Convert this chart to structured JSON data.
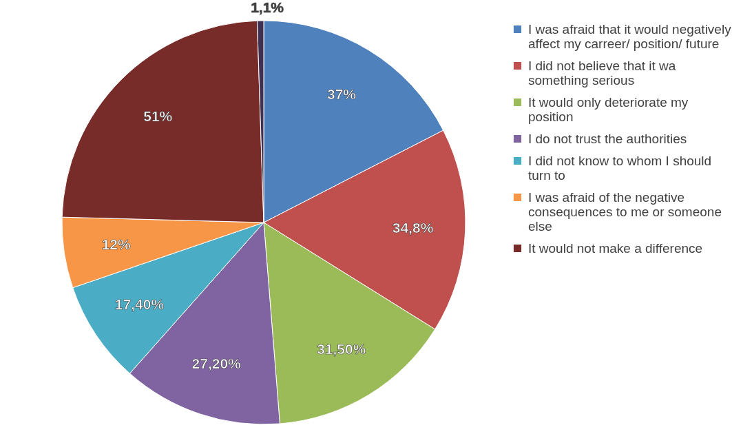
{
  "chart_data": {
    "type": "pie",
    "categories": [
      "I was afraid that it would negatively affect my carreer/ position/ future",
      "I did not believe that it wa something serious",
      "It would only deteriorate my position",
      "I do not trust the authorities",
      "I did not know to whom I should turn to",
      "I was afraid  of the negative consequences to me or someone else",
      "It would not make a difference",
      null
    ],
    "values": [
      37,
      34.8,
      31.5,
      27.2,
      17.4,
      12,
      51,
      1.1
    ],
    "value_labels": [
      "37%",
      "34,8%",
      "31,50%",
      "27,20%",
      "17,40%",
      "12%",
      "51%",
      "1,1%"
    ],
    "colors": [
      "#4f81bd",
      "#c0504d",
      "#9bbb59",
      "#8064a2",
      "#4bacc6",
      "#f79646",
      "#772c2a",
      "#403152"
    ],
    "legend": "right"
  }
}
